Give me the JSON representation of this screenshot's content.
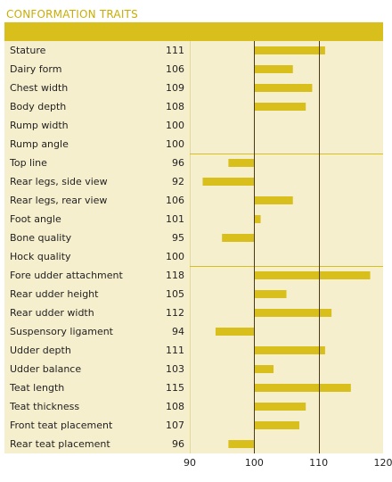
{
  "title": "CONFORMATION TRAITS",
  "colors": {
    "bar": "#d9bf1c",
    "panel": "#f6efce",
    "header": "#d9bf1c",
    "title": "#c9ad06"
  },
  "chart_data": {
    "type": "bar",
    "orientation": "horizontal",
    "categories": [
      "Stature",
      "Dairy form",
      "Chest width",
      "Body depth",
      "Rump width",
      "Rump angle",
      "Top line",
      "Rear legs, side view",
      "Rear legs, rear view",
      "Foot angle",
      "Bone quality",
      "Hock quality",
      "Fore udder attachment",
      "Rear udder height",
      "Rear udder width",
      "Suspensory ligament",
      "Udder depth",
      "Udder balance",
      "Teat length",
      "Teat thickness",
      "Front teat placement",
      "Rear teat placement"
    ],
    "values": [
      111,
      106,
      109,
      108,
      100,
      100,
      96,
      92,
      106,
      101,
      95,
      100,
      118,
      105,
      112,
      94,
      111,
      103,
      115,
      108,
      107,
      96
    ],
    "baseline": 100,
    "xlim": [
      90,
      120
    ],
    "xticks": [
      "90",
      "100",
      "110",
      "120"
    ],
    "reference_lines": [
      100,
      110
    ],
    "group_separators_after": [
      "Rump angle",
      "Hock quality"
    ]
  }
}
